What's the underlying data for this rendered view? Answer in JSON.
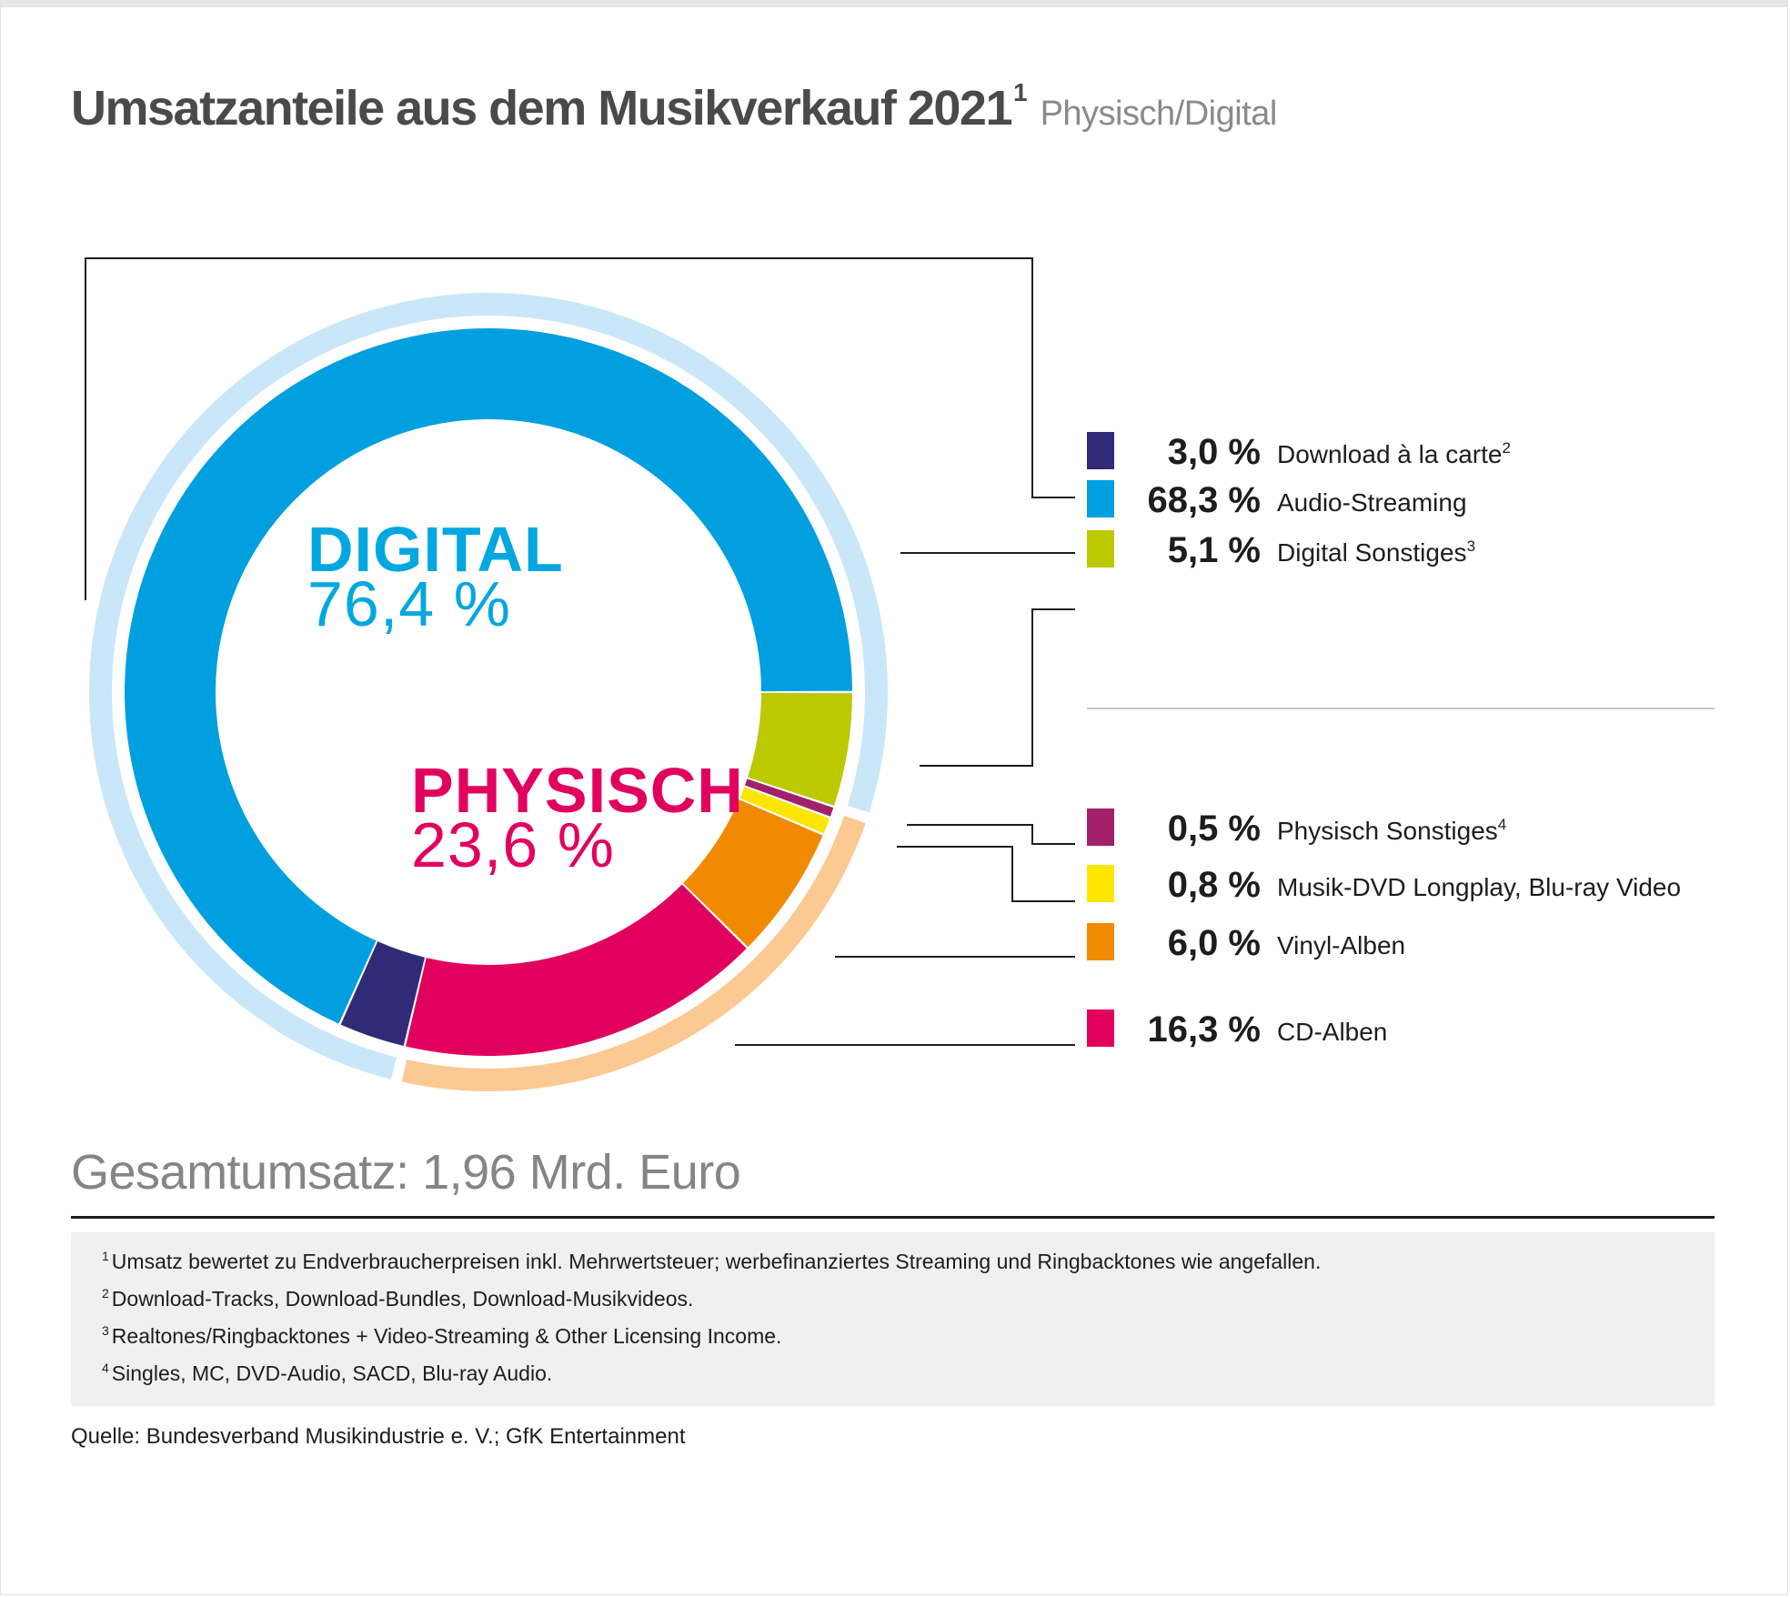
{
  "header": {
    "title": "Umsatzanteile aus dem Musikverkauf 2021",
    "title_footnote": "1",
    "subtitle": "Physisch/Digital"
  },
  "chart_data": {
    "type": "pie",
    "variant": "donut",
    "title": "Umsatzanteile aus dem Musikverkauf 2021",
    "subtitle": "Physisch/Digital",
    "unit": "%",
    "start_angle_deg": 90,
    "direction": "clockwise",
    "groups": [
      {
        "name": "DIGITAL",
        "value": 76.4,
        "label": "76,4 %",
        "color": "#00a7e1",
        "ring_color": "#c9e7f8"
      },
      {
        "name": "PHYSISCH",
        "value": 23.6,
        "label": "23,6 %",
        "color": "#e2005f",
        "ring_color": "#fcc993"
      }
    ],
    "slices": [
      {
        "name": "Digital Sonstiges",
        "footnote": "3",
        "value": 5.1,
        "label": "5,1 %",
        "color": "#bcc800",
        "group": "DIGITAL"
      },
      {
        "name": "Physisch Sonstiges",
        "footnote": "4",
        "value": 0.5,
        "label": "0,5 %",
        "color": "#a3206b",
        "group": "PHYSISCH"
      },
      {
        "name": "Musik-DVD Longplay, Blu-ray Video",
        "footnote": "",
        "value": 0.8,
        "label": "0,8 %",
        "color": "#ffe600",
        "group": "PHYSISCH"
      },
      {
        "name": "Vinyl-Alben",
        "footnote": "",
        "value": 6.0,
        "label": "6,0 %",
        "color": "#f18a00",
        "group": "PHYSISCH"
      },
      {
        "name": "CD-Alben",
        "footnote": "",
        "value": 16.3,
        "label": "16,3 %",
        "color": "#e2005f",
        "group": "PHYSISCH"
      },
      {
        "name": "Download à la carte",
        "footnote": "2",
        "value": 3.0,
        "label": "3,0 %",
        "color": "#302a77",
        "group": "DIGITAL"
      },
      {
        "name": "Audio-Streaming",
        "footnote": "",
        "value": 68.3,
        "label": "68,3 %",
        "color": "#009fdf",
        "group": "DIGITAL"
      }
    ],
    "legend_order": [
      "Download à la carte",
      "Audio-Streaming",
      "Digital Sonstiges",
      "Physisch Sonstiges",
      "Musik-DVD Longplay, Blu-ray Video",
      "Vinyl-Alben",
      "CD-Alben"
    ],
    "legend_position": "right"
  },
  "total": "Gesamtumsatz: 1,96 Mrd. Euro",
  "footnotes": [
    {
      "num": "1",
      "text": "Umsatz bewertet zu Endverbraucherpreisen inkl. Mehrwertsteuer; werbefinanziertes Streaming und Ringbacktones wie angefallen."
    },
    {
      "num": "2",
      "text": "Download-Tracks, Download-Bundles, Download-Musikvideos."
    },
    {
      "num": "3",
      "text": "Realtones/Ringbacktones + Video-Streaming & Other Licensing Income."
    },
    {
      "num": "4",
      "text": "Singles, MC, DVD-Audio, SACD, Blu-ray Audio."
    }
  ],
  "source": "Quelle: Bundesverband Musikindustrie e. V.; GfK Entertainment"
}
